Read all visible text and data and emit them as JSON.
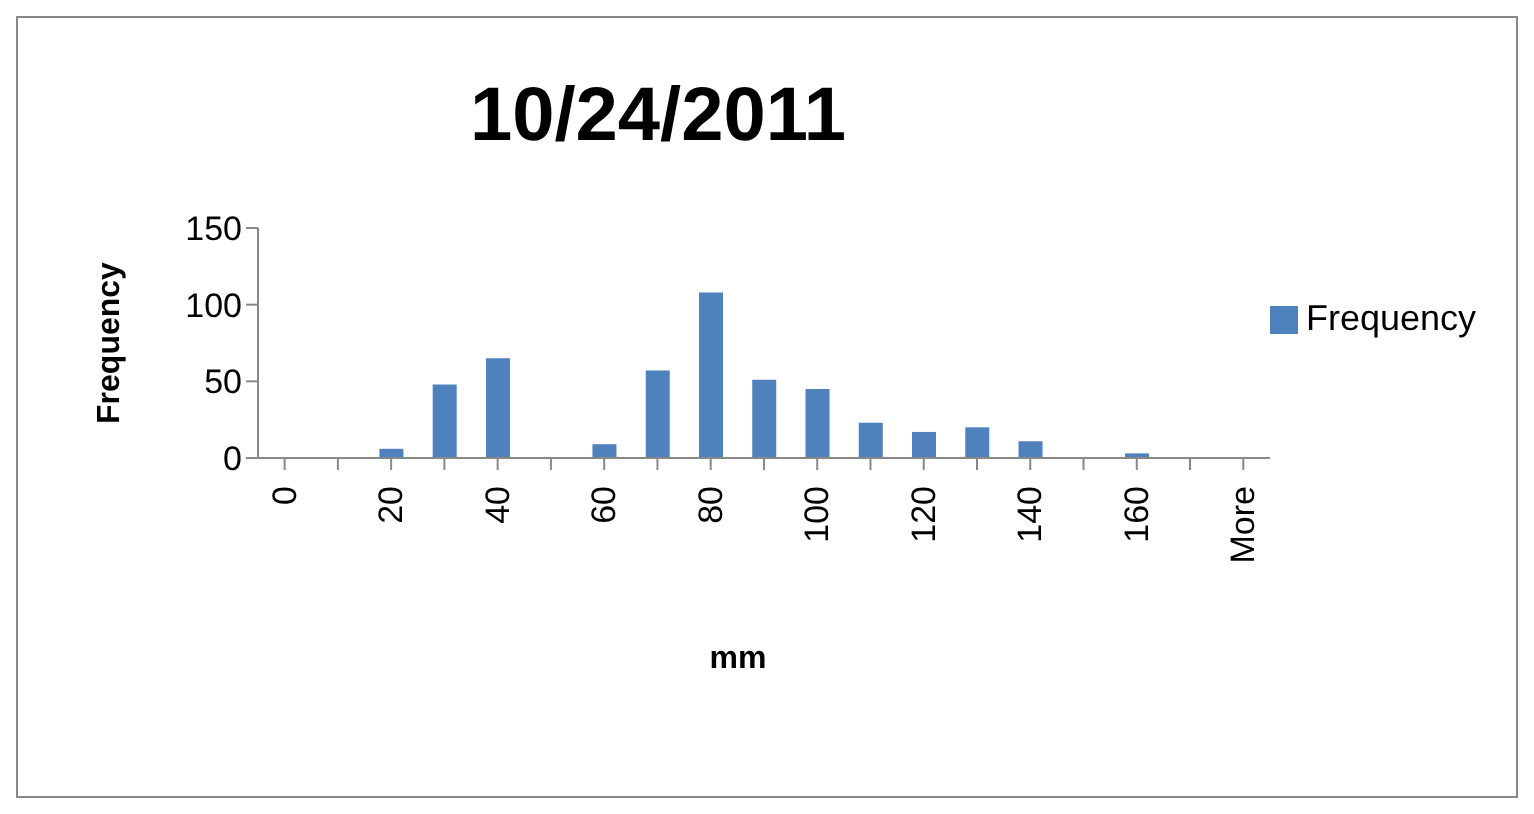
{
  "chart_data": {
    "type": "bar",
    "title": "10/24/2011",
    "xlabel": "mm",
    "ylabel": "Frequency",
    "categories": [
      "0",
      null,
      "20",
      null,
      "40",
      null,
      "60",
      null,
      "80",
      null,
      "100",
      null,
      "120",
      null,
      "140",
      null,
      "160",
      null,
      "More"
    ],
    "series": [
      {
        "name": "Frequency",
        "color": "#4f81bd",
        "values": [
          0,
          0,
          6,
          48,
          65,
          0,
          9,
          57,
          108,
          51,
          45,
          23,
          17,
          20,
          11,
          0,
          3,
          0,
          0
        ]
      }
    ],
    "ylim": [
      0,
      150
    ],
    "yticks": [
      0,
      50,
      100,
      150
    ],
    "grid": false,
    "legend": "right"
  }
}
